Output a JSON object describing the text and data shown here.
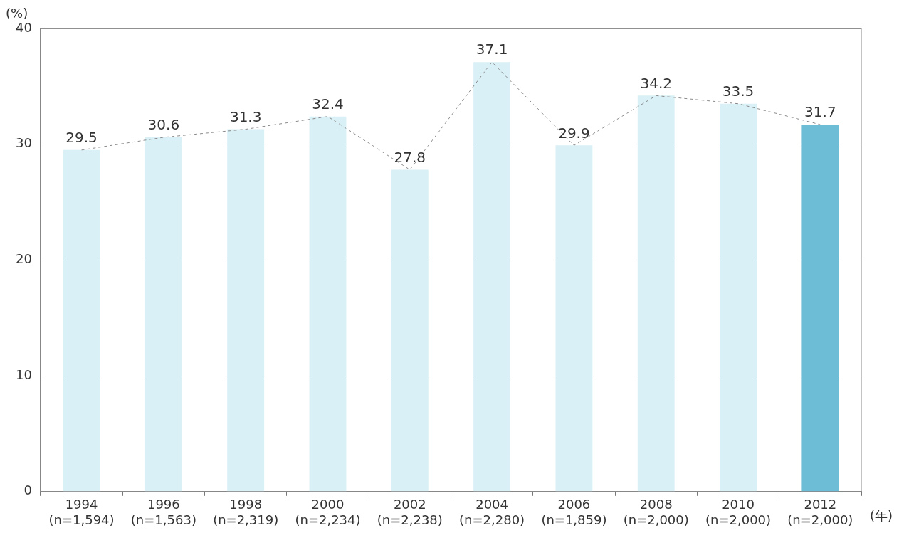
{
  "chart_data": {
    "type": "bar",
    "xlabel": "(年)",
    "ylabel": "(%)",
    "categories": [
      "1994\n(n=1,594)",
      "1996\n(n=1,563)",
      "1998\n(n=2,319)",
      "2000\n(n=2,234)",
      "2002\n(n=2,238)",
      "2004\n(n=2,280)",
      "2006\n(n=1,859)",
      "2008\n(n=2,000)",
      "2010\n(n=2,000)",
      "2012\n(n=2,000)"
    ],
    "series": [
      {
        "colors": [
          "#d9f0f6",
          "#d9f0f6",
          "#d9f0f6",
          "#d9f0f6",
          "#d9f0f6",
          "#d9f0f6",
          "#d9f0f6",
          "#d9f0f6",
          "#d9f0f6",
          "#6dbdd6"
        ],
        "values": [
          29.5,
          30.6,
          31.3,
          32.4,
          27.8,
          37.1,
          29.9,
          34.2,
          33.5,
          31.7
        ],
        "value_labels": [
          "29.5",
          "30.6",
          "31.3",
          "32.4",
          "27.8",
          "37.1",
          "29.9",
          "34.2",
          "33.5",
          "31.7"
        ]
      },
      {
        "type": "line",
        "color": "#8a8a8a",
        "line_style": "dashed",
        "marker": "none",
        "values": [
          29.5,
          30.6,
          31.3,
          32.4,
          27.8,
          37.1,
          29.9,
          34.2,
          33.5,
          31.7
        ]
      }
    ],
    "ylim": [
      0,
      40
    ],
    "yticks": [
      0,
      10,
      20,
      30,
      40
    ],
    "grid": "y",
    "legend": false
  }
}
